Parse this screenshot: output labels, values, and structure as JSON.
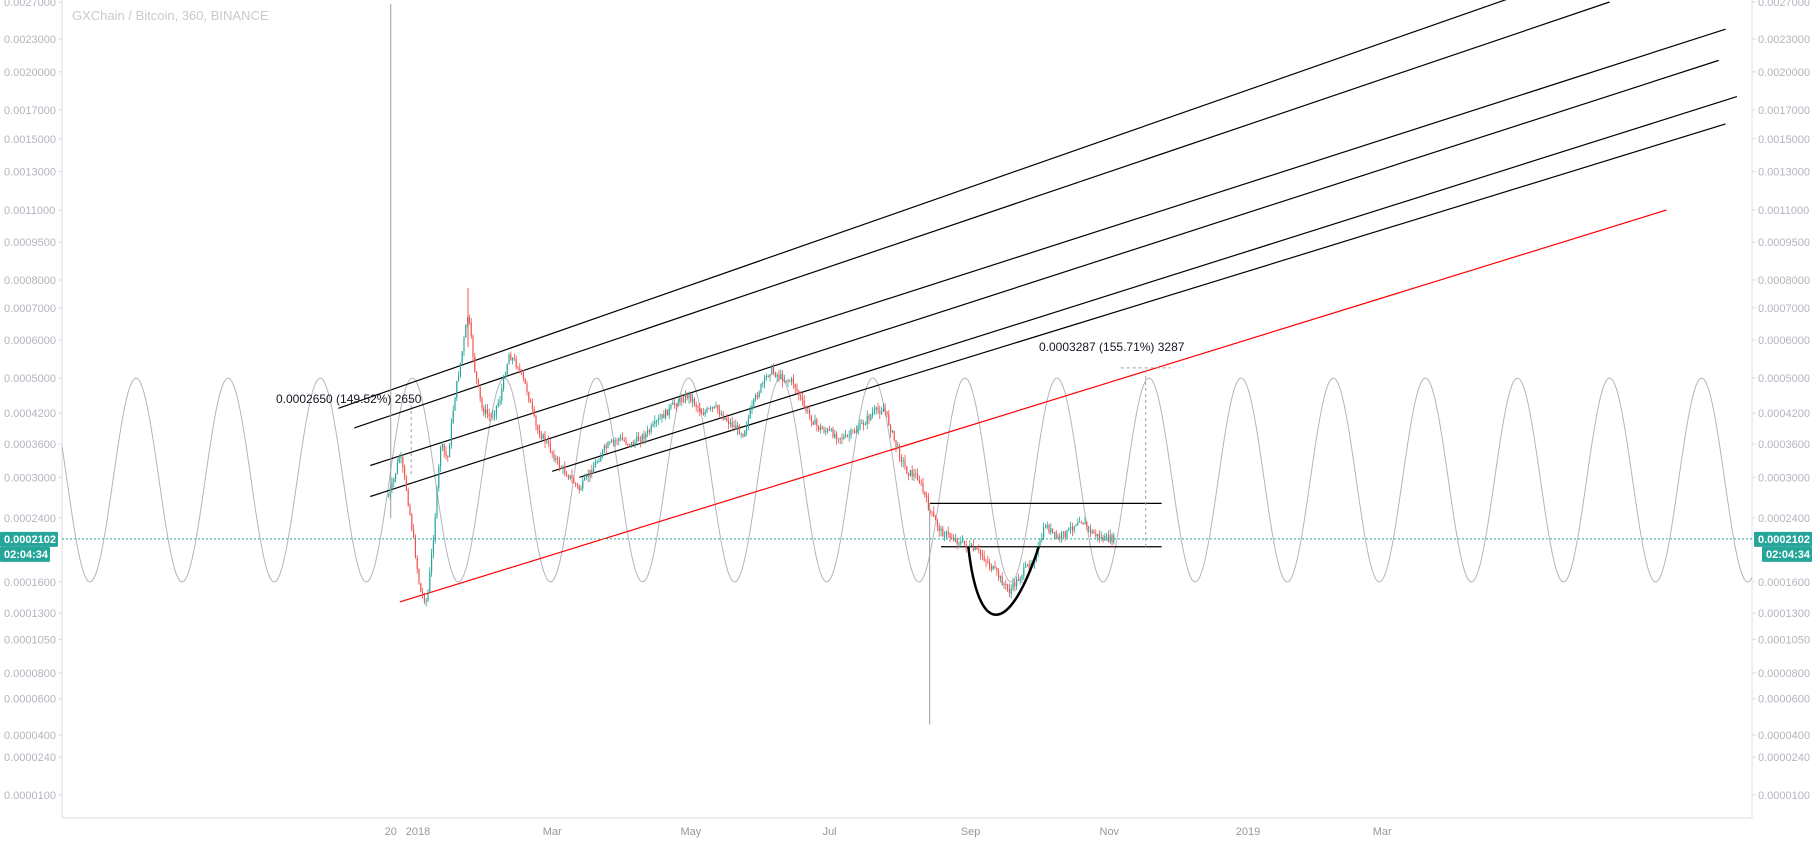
{
  "title": "GXChain / Bitcoin, 360, BINANCE",
  "colors": {
    "up": "#26a69a",
    "down": "#ef5350",
    "accent": "#26a69a",
    "trend_line": "#000000",
    "red_line": "#ff0000",
    "sine": "#b2b5be",
    "axis_text": "#b2b5be"
  },
  "price_axis": {
    "ticks": [
      "0.0027000",
      "0.0023000",
      "0.0020000",
      "0.0017000",
      "0.0015000",
      "0.0013000",
      "0.0011000",
      "0.0009500",
      "0.0008000",
      "0.0007000",
      "0.0006000",
      "0.0005000",
      "0.0004200",
      "0.0003600",
      "0.0003000",
      "0.0002400",
      "0.0001600",
      "0.0001300",
      "0.0001050",
      "0.0000800",
      "0.0000600",
      "0.0000400",
      "0.0000240",
      "0.0000100"
    ],
    "current_price": "0.0002102",
    "countdown": "02:04:34"
  },
  "time_axis": {
    "labels": [
      "20",
      "2018",
      "Mar",
      "May",
      "Jul",
      "Sep",
      "Nov",
      "2019",
      "Mar"
    ]
  },
  "annotations": {
    "measure_1": "0.0002650 (149.52%) 2650",
    "measure_2": "0.0003287 (155.71%) 3287"
  },
  "chart_data": {
    "type": "candlestick",
    "title": "GXChain / Bitcoin, 360, BINANCE",
    "symbol": "GXChain / Bitcoin",
    "interval": "360",
    "exchange": "BINANCE",
    "scale": "log",
    "last_price": 0.0002102,
    "ylim": [
      1e-05,
      0.0027
    ],
    "price_path": [
      {
        "x": "2017-12-19",
        "y": 0.00027
      },
      {
        "x": "2017-12-21",
        "y": 0.00029
      },
      {
        "x": "2017-12-24",
        "y": 0.00034
      },
      {
        "x": "2017-12-27",
        "y": 0.00028
      },
      {
        "x": "2017-12-30",
        "y": 0.00021
      },
      {
        "x": "2018-01-02",
        "y": 0.00015
      },
      {
        "x": "2018-01-05",
        "y": 0.00014
      },
      {
        "x": "2018-01-08",
        "y": 0.00022
      },
      {
        "x": "2018-01-11",
        "y": 0.00036
      },
      {
        "x": "2018-01-14",
        "y": 0.00033
      },
      {
        "x": "2018-01-17",
        "y": 0.00045
      },
      {
        "x": "2018-01-20",
        "y": 0.00055
      },
      {
        "x": "2018-01-23",
        "y": 0.00068
      },
      {
        "x": "2018-01-26",
        "y": 0.00052
      },
      {
        "x": "2018-01-29",
        "y": 0.00043
      },
      {
        "x": "2018-02-02",
        "y": 0.00041
      },
      {
        "x": "2018-02-06",
        "y": 0.00045
      },
      {
        "x": "2018-02-10",
        "y": 0.00056
      },
      {
        "x": "2018-02-14",
        "y": 0.00053
      },
      {
        "x": "2018-02-18",
        "y": 0.00047
      },
      {
        "x": "2018-02-22",
        "y": 0.00039
      },
      {
        "x": "2018-02-27",
        "y": 0.00036
      },
      {
        "x": "2018-03-04",
        "y": 0.00032
      },
      {
        "x": "2018-03-09",
        "y": 0.0003
      },
      {
        "x": "2018-03-13",
        "y": 0.00028
      },
      {
        "x": "2018-03-18",
        "y": 0.00031
      },
      {
        "x": "2018-03-24",
        "y": 0.00035
      },
      {
        "x": "2018-03-30",
        "y": 0.00037
      },
      {
        "x": "2018-04-05",
        "y": 0.00036
      },
      {
        "x": "2018-04-12",
        "y": 0.00038
      },
      {
        "x": "2018-04-18",
        "y": 0.00041
      },
      {
        "x": "2018-04-24",
        "y": 0.00044
      },
      {
        "x": "2018-04-30",
        "y": 0.00046
      },
      {
        "x": "2018-05-06",
        "y": 0.00042
      },
      {
        "x": "2018-05-12",
        "y": 0.00043
      },
      {
        "x": "2018-05-18",
        "y": 0.0004
      },
      {
        "x": "2018-05-24",
        "y": 0.00038
      },
      {
        "x": "2018-05-30",
        "y": 0.00046
      },
      {
        "x": "2018-06-05",
        "y": 0.00052
      },
      {
        "x": "2018-06-10",
        "y": 0.0005
      },
      {
        "x": "2018-06-15",
        "y": 0.00049
      },
      {
        "x": "2018-06-20",
        "y": 0.00043
      },
      {
        "x": "2018-06-26",
        "y": 0.00039
      },
      {
        "x": "2018-07-02",
        "y": 0.00038
      },
      {
        "x": "2018-07-08",
        "y": 0.00037
      },
      {
        "x": "2018-07-14",
        "y": 0.00039
      },
      {
        "x": "2018-07-20",
        "y": 0.00042
      },
      {
        "x": "2018-07-25",
        "y": 0.00043
      },
      {
        "x": "2018-07-30",
        "y": 0.00036
      },
      {
        "x": "2018-08-04",
        "y": 0.00031
      },
      {
        "x": "2018-08-09",
        "y": 0.0003
      },
      {
        "x": "2018-08-14",
        "y": 0.00025
      },
      {
        "x": "2018-08-19",
        "y": 0.00022
      },
      {
        "x": "2018-08-25",
        "y": 0.00021
      },
      {
        "x": "2018-08-31",
        "y": 0.0002
      },
      {
        "x": "2018-09-06",
        "y": 0.00019
      },
      {
        "x": "2018-09-12",
        "y": 0.00017
      },
      {
        "x": "2018-09-18",
        "y": 0.00015
      },
      {
        "x": "2018-09-24",
        "y": 0.00017
      },
      {
        "x": "2018-09-30",
        "y": 0.00019
      },
      {
        "x": "2018-10-04",
        "y": 0.00023
      },
      {
        "x": "2018-10-09",
        "y": 0.00021
      },
      {
        "x": "2018-10-14",
        "y": 0.00022
      },
      {
        "x": "2018-10-19",
        "y": 0.00024
      },
      {
        "x": "2018-10-24",
        "y": 0.00022
      },
      {
        "x": "2018-10-29",
        "y": 0.00021
      },
      {
        "x": "2018-11-03",
        "y": 0.00021
      }
    ],
    "trend_lines": [
      {
        "color": "black",
        "from": {
          "x": "2017-11-27",
          "y": 0.00043
        },
        "to": {
          "x": "2019-05-02",
          "y": 0.0028
        }
      },
      {
        "color": "black",
        "from": {
          "x": "2017-12-04",
          "y": 0.00039
        },
        "to": {
          "x": "2019-06-09",
          "y": 0.0027
        }
      },
      {
        "color": "black",
        "from": {
          "x": "2017-12-11",
          "y": 0.00032
        },
        "to": {
          "x": "2019-07-30",
          "y": 0.0024
        }
      },
      {
        "color": "black",
        "from": {
          "x": "2017-12-11",
          "y": 0.00027
        },
        "to": {
          "x": "2019-07-27",
          "y": 0.0021
        }
      },
      {
        "color": "black",
        "from": {
          "x": "2018-03-01",
          "y": 0.00031
        },
        "to": {
          "x": "2019-08-04",
          "y": 0.0018
        }
      },
      {
        "color": "black",
        "from": {
          "x": "2018-03-13",
          "y": 0.0003
        },
        "to": {
          "x": "2019-07-30",
          "y": 0.0016
        }
      },
      {
        "color": "red",
        "from": {
          "x": "2017-12-24",
          "y": 0.00014
        },
        "to": {
          "x": "2019-07-04",
          "y": 0.0011
        }
      }
    ],
    "horizontal_levels": [
      {
        "from": "2018-08-14",
        "to": "2018-11-24",
        "y": 0.00026
      },
      {
        "from": "2018-08-19",
        "to": "2018-11-24",
        "y": 0.0002
      }
    ],
    "sine_wave": {
      "period_days": 40.5,
      "peak_date": "2017-11-19",
      "high": 0.0005,
      "low": 0.00016
    }
  }
}
